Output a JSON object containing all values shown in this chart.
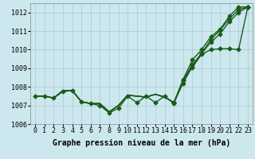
{
  "title": "Graphe pression niveau de la mer (hPa)",
  "hours": [
    0,
    1,
    2,
    3,
    4,
    5,
    6,
    7,
    8,
    9,
    10,
    11,
    12,
    13,
    14,
    15,
    16,
    17,
    18,
    19,
    20,
    21,
    22,
    23
  ],
  "series": {
    "line1": [
      1007.5,
      1007.5,
      1007.4,
      1007.8,
      1007.8,
      1007.2,
      1007.1,
      1007.1,
      1006.65,
      1007.0,
      1007.55,
      1007.5,
      1007.45,
      1007.6,
      1007.45,
      1007.15,
      1008.4,
      1009.45,
      1010.0,
      1010.7,
      1011.1,
      1011.8,
      1012.3,
      1012.3
    ],
    "line2": [
      1007.5,
      1007.5,
      1007.4,
      1007.8,
      1007.8,
      1007.2,
      1007.1,
      1007.1,
      1006.65,
      1007.0,
      1007.55,
      1007.5,
      1007.45,
      1007.6,
      1007.45,
      1007.15,
      1008.35,
      1009.2,
      1009.8,
      1010.55,
      1011.05,
      1011.65,
      1012.15,
      1012.3
    ],
    "line3": [
      1007.5,
      1007.5,
      1007.4,
      1007.8,
      1007.8,
      1007.2,
      1007.1,
      1007.1,
      1006.65,
      1007.0,
      1007.55,
      1007.5,
      1007.45,
      1007.6,
      1007.45,
      1007.15,
      1008.2,
      1009.1,
      1009.8,
      1010.4,
      1010.85,
      1011.5,
      1012.0,
      1012.3
    ],
    "line4": [
      1007.5,
      1007.5,
      1007.4,
      1007.75,
      1007.8,
      1007.2,
      1007.1,
      1007.1,
      1006.6,
      1006.85,
      1007.55,
      1007.15,
      1007.55,
      1007.15,
      1007.55,
      1007.1,
      1008.35,
      1009.05,
      1009.75,
      1010.0,
      1010.05,
      1010.05,
      1010.0,
      1012.3
    ]
  },
  "markers_line4": [
    0,
    1,
    2,
    3,
    4,
    5,
    6,
    7,
    8,
    9,
    10,
    11,
    12,
    13,
    14,
    15,
    16,
    17,
    18,
    19,
    20,
    21,
    22,
    23
  ],
  "markers_line1": [
    16,
    17,
    18,
    19,
    20,
    21,
    22,
    23
  ],
  "markers_line2": [
    16,
    17,
    18,
    19,
    20,
    21,
    22,
    23
  ],
  "markers_line3": [
    16,
    17,
    18,
    19,
    20,
    21,
    22,
    23
  ],
  "line_color": "#1a5c1a",
  "bg_color": "#cce8ee",
  "grid_color": "#a8c8d0",
  "ylim": [
    1006.0,
    1012.5
  ],
  "yticks": [
    1006,
    1007,
    1008,
    1009,
    1010,
    1011,
    1012
  ],
  "linewidth": 1.0,
  "markersize": 2.5,
  "tick_fontsize": 6,
  "title_fontsize": 7
}
